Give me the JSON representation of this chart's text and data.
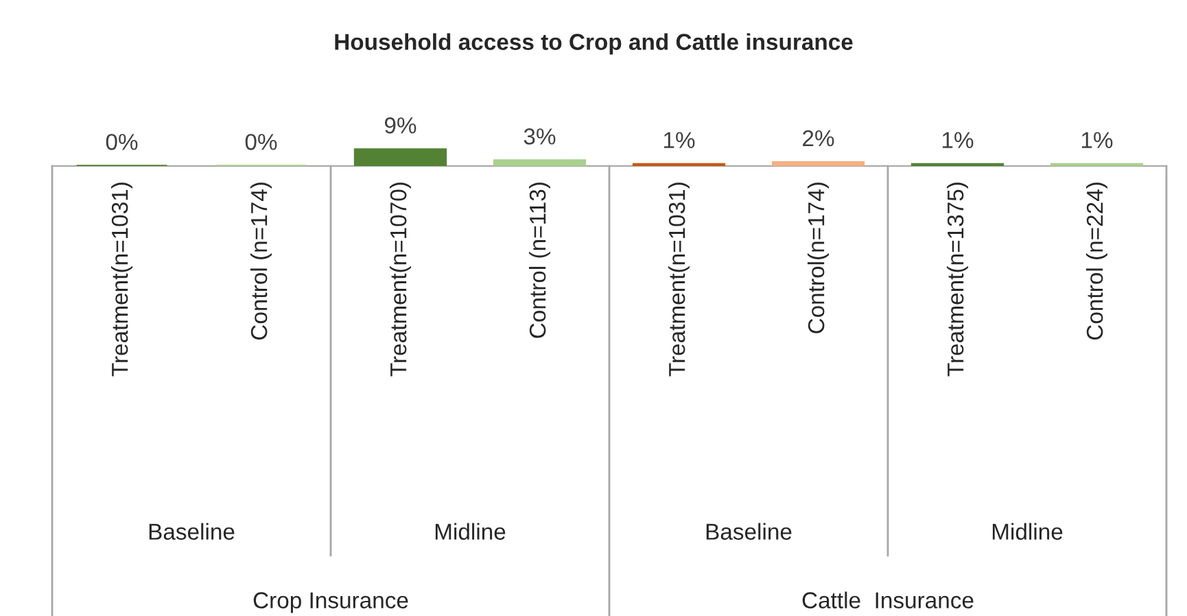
{
  "chart_data": {
    "type": "bar",
    "title": "Household access to Crop and Cattle insurance",
    "categories": [
      "Treatment(n=1031)",
      "Control (n=174)",
      "Treatment(n=1070)",
      "Control (n=113)",
      "Treatment(n=1031)",
      "Control(n=174)",
      "Treatment(n=1375)",
      "Control (n=224)"
    ],
    "values": [
      0,
      0,
      9,
      3,
      1,
      2,
      1,
      1
    ],
    "value_labels": [
      "0%",
      "0%",
      "9%",
      "3%",
      "1%",
      "2%",
      "1%",
      "1%"
    ],
    "colors": [
      "#548235",
      "#a9d18e",
      "#548235",
      "#a9d18e",
      "#c55a11",
      "#f4b183",
      "#548235",
      "#a9d18e"
    ],
    "annotations": [
      "Baseline",
      "Midline",
      "Baseline",
      "Midline",
      "Crop Insurance",
      "Cattle  Insurance"
    ],
    "legend": false,
    "grid": false
  }
}
